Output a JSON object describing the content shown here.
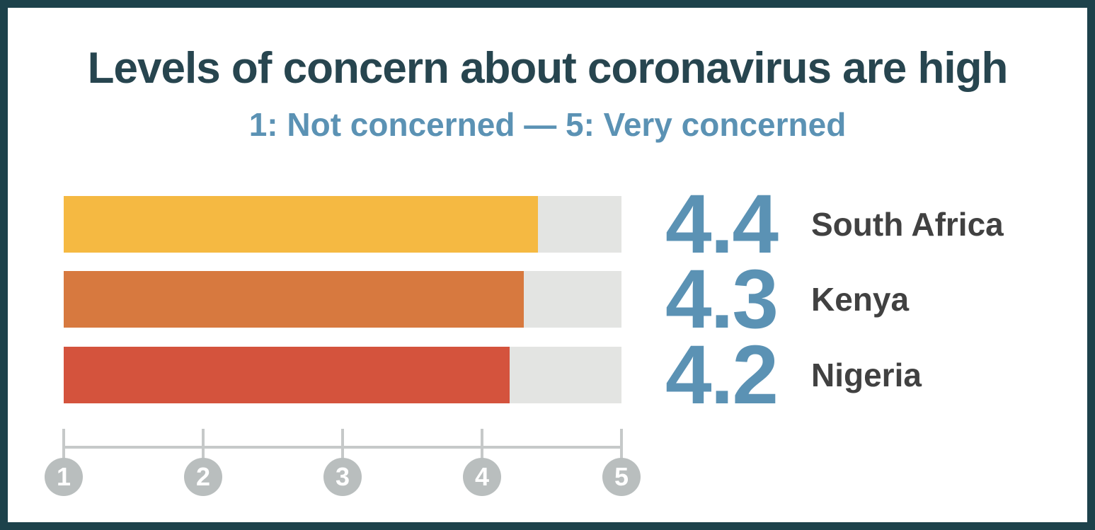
{
  "header": {
    "title": "Levels of concern about coronavirus are high",
    "subtitle": "1: Not concerned — 5: Very concerned"
  },
  "chart_data": {
    "type": "bar",
    "orientation": "horizontal",
    "title": "Levels of concern about coronavirus are high",
    "subtitle": "1: Not concerned — 5: Very concerned",
    "categories": [
      "South Africa",
      "Kenya",
      "Nigeria"
    ],
    "values": [
      4.4,
      4.3,
      4.2
    ],
    "value_labels": [
      "4.4",
      "4.3",
      "4.2"
    ],
    "bar_colors": [
      "#F5B942",
      "#D7793F",
      "#D4533D"
    ],
    "track_color": "#E3E4E2",
    "xlim": [
      1,
      5
    ],
    "axis_ticks": [
      "1",
      "2",
      "3",
      "4",
      "5"
    ],
    "grid": false,
    "legend": false
  },
  "colors": {
    "frame_border": "#1D424B",
    "title_text": "#27454F",
    "subtitle_text": "#5B92B4",
    "value_text": "#5B92B4",
    "country_label_text": "#414141",
    "axis_gray": "#C6C9C9",
    "tick_circle_gray": "#B9BEBE",
    "tick_number_text": "#FFFFFF",
    "background": "#FFFFFF"
  }
}
